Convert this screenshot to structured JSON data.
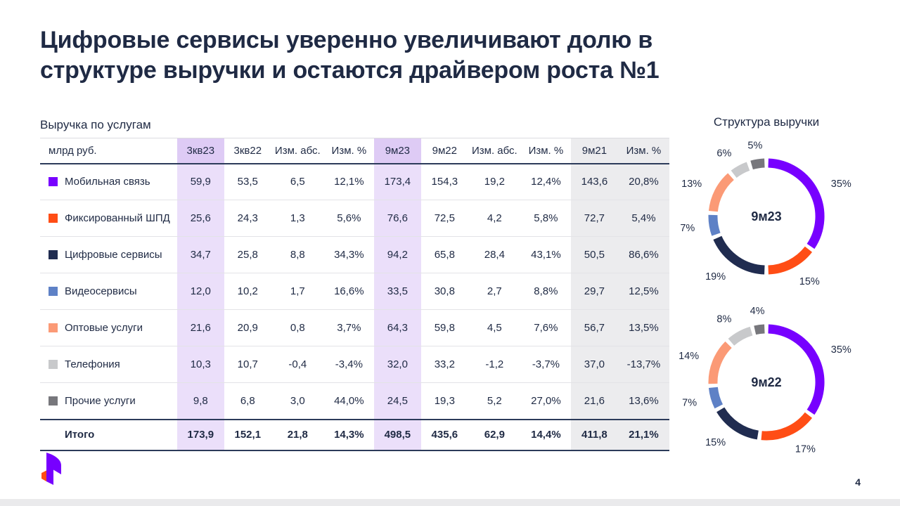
{
  "slide": {
    "title": "Цифровые сервисы уверенно увеличивают долю в структуре выручки и остаются драйвером роста №1",
    "title_lines": [
      "Цифровые сервисы уверенно увеличивают долю в",
      "структуре выручки и остаются драйвером роста №1"
    ],
    "page_number": "4"
  },
  "table": {
    "title": "Выручка по услугам",
    "unit_label": "млрд руб.",
    "columns": [
      "3кв23",
      "3кв22",
      "Изм. абс.",
      "Изм. %",
      "9м23",
      "9м22",
      "Изм. абс.",
      "Изм. %",
      "9м21",
      "Изм. %"
    ],
    "purple_cols": [
      0,
      4
    ],
    "gray_cols": [
      8,
      9
    ],
    "rows": [
      {
        "label": "Мобильная связь",
        "color": "#7700FF",
        "values": [
          "59,9",
          "53,5",
          "6,5",
          "12,1%",
          "173,4",
          "154,3",
          "19,2",
          "12,4%",
          "143,6",
          "20,8%"
        ]
      },
      {
        "label": "Фиксированный ШПД",
        "color": "#FF4D15",
        "values": [
          "25,6",
          "24,3",
          "1,3",
          "5,6%",
          "76,6",
          "72,5",
          "4,2",
          "5,8%",
          "72,7",
          "5,4%"
        ]
      },
      {
        "label": "Цифровые сервисы",
        "color": "#202C50",
        "values": [
          "34,7",
          "25,8",
          "8,8",
          "34,3%",
          "94,2",
          "65,8",
          "28,4",
          "43,1%",
          "50,5",
          "86,6%"
        ]
      },
      {
        "label": "Видеосервисы",
        "color": "#5E81C6",
        "values": [
          "12,0",
          "10,2",
          "1,7",
          "16,6%",
          "33,5",
          "30,8",
          "2,7",
          "8,8%",
          "29,7",
          "12,5%"
        ]
      },
      {
        "label": "Оптовые услуги",
        "color": "#FB9A76",
        "values": [
          "21,6",
          "20,9",
          "0,8",
          "3,7%",
          "64,3",
          "59,8",
          "4,5",
          "7,6%",
          "56,7",
          "13,5%"
        ]
      },
      {
        "label": "Телефония",
        "color": "#C8C9CB",
        "values": [
          "10,3",
          "10,7",
          "-0,4",
          "-3,4%",
          "32,0",
          "33,2",
          "-1,2",
          "-3,7%",
          "37,0",
          "-13,7%"
        ]
      },
      {
        "label": "Прочие услуги",
        "color": "#77777C",
        "values": [
          "9,8",
          "6,8",
          "3,0",
          "44,0%",
          "24,5",
          "19,3",
          "5,2",
          "27,0%",
          "21,6",
          "13,6%"
        ]
      }
    ],
    "total": {
      "label": "Итого",
      "values": [
        "173,9",
        "152,1",
        "21,8",
        "14,3%",
        "498,5",
        "435,6",
        "62,9",
        "14,4%",
        "411,8",
        "21,1%"
      ]
    }
  },
  "charts": {
    "title": "Структура выручки"
  },
  "chart_data": [
    {
      "type": "pie",
      "title": "Структура выручки 9м23",
      "center_label": "9м23",
      "labels": [
        "Мобильная связь",
        "Фиксированный ШПД",
        "Цифровые сервисы",
        "Видеосервисы",
        "Оптовые услуги",
        "Телефония",
        "Прочие услуги"
      ],
      "values": [
        35,
        15,
        19,
        7,
        13,
        6,
        5
      ],
      "colors": [
        "#7700FF",
        "#FF4D15",
        "#202C50",
        "#5E81C6",
        "#FB9A76",
        "#C8C9CB",
        "#77777C"
      ],
      "unit": "%",
      "legend_position": "table-left"
    },
    {
      "type": "pie",
      "title": "Структура выручки 9м22",
      "center_label": "9м22",
      "labels": [
        "Мобильная связь",
        "Фиксированный ШПД",
        "Цифровые сервисы",
        "Видеосервисы",
        "Оптовые услуги",
        "Телефония",
        "Прочие услуги"
      ],
      "values": [
        35,
        17,
        15,
        7,
        14,
        8,
        4
      ],
      "colors": [
        "#7700FF",
        "#FF4D15",
        "#202C50",
        "#5E81C6",
        "#FB9A76",
        "#C8C9CB",
        "#77777C"
      ],
      "unit": "%",
      "legend_position": "table-left"
    }
  ],
  "colors": {
    "accent_purple": "#7700FF",
    "accent_orange": "#FF4D15",
    "text_navy": "#1F2A44",
    "highlight_purple_header": "#DECBF5",
    "highlight_purple_body": "#EBDFFA",
    "highlight_gray": "#ECECEE"
  }
}
